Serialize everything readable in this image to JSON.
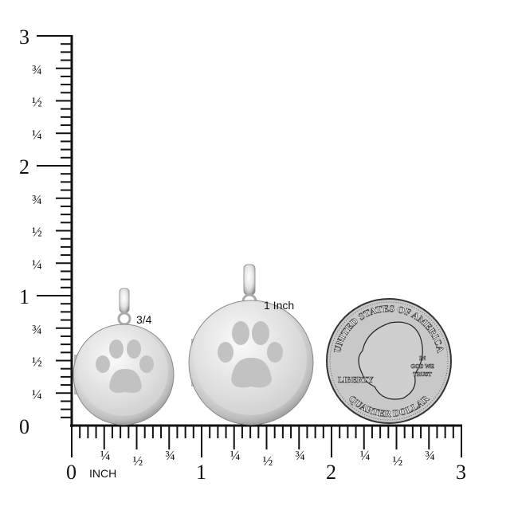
{
  "ruler": {
    "unit_label": "INCH",
    "vertical_major": [
      "0",
      "1",
      "2",
      "3"
    ],
    "vertical_fractions": [
      "¼",
      "½",
      "¾"
    ],
    "horizontal_major": [
      "0",
      "1",
      "2",
      "3"
    ],
    "horizontal_fractions": [
      "¼",
      "½",
      "¾"
    ],
    "max_inches": 3,
    "subdivisions_per_inch": 16
  },
  "items": {
    "small_locket_label": "3/4",
    "large_locket_label": "1 Inch"
  },
  "coin": {
    "top_text": "UNITED STATES OF AMERICA",
    "left_text": "LIBERTY",
    "motto": [
      "IN",
      "GOD WE",
      "TRUST"
    ],
    "bottom_text": "QUARTER DOLLAR"
  },
  "colors": {
    "ruler": "#111111",
    "silver": "#d9d9d9",
    "coin": "#c8c8c8"
  }
}
